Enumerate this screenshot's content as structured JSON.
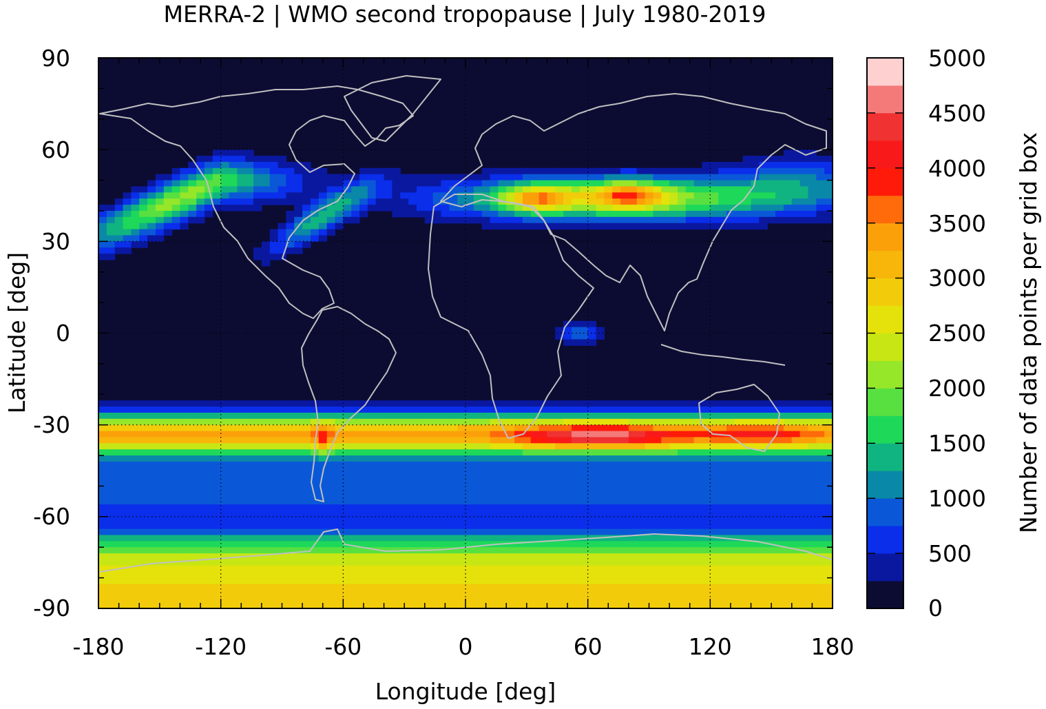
{
  "chart_data": {
    "type": "heatmap",
    "title": "MERRA-2 | WMO second tropopause | July 1980-2019",
    "xlabel": "Longitude [deg]",
    "ylabel": "Latitude [deg]",
    "colorbar_label": "Number of data points per grid box",
    "xlim": [
      -180,
      180
    ],
    "ylim": [
      -90,
      90
    ],
    "x_ticks": [
      "-180",
      "-120",
      "-60",
      "0",
      "60",
      "120",
      "180"
    ],
    "y_ticks": [
      "90",
      "60",
      "30",
      "0",
      "-30",
      "-60",
      "-90"
    ],
    "x_tick_values": [
      -180,
      -120,
      -60,
      0,
      60,
      120,
      180
    ],
    "y_tick_values": [
      90,
      60,
      30,
      0,
      -30,
      -60,
      -90
    ],
    "colorbar_ticks": [
      "5000",
      "4500",
      "4000",
      "3500",
      "3000",
      "2500",
      "2000",
      "1500",
      "1000",
      "500",
      "0"
    ],
    "colorbar_tick_values": [
      5000,
      4500,
      4000,
      3500,
      3000,
      2500,
      2000,
      1500,
      1000,
      500,
      0
    ],
    "color_levels": [
      {
        "from": 0,
        "to": 250,
        "color": "#0c0c33"
      },
      {
        "from": 250,
        "to": 500,
        "color": "#0a18a0"
      },
      {
        "from": 500,
        "to": 750,
        "color": "#0a2eea"
      },
      {
        "from": 750,
        "to": 1000,
        "color": "#0a58d8"
      },
      {
        "from": 1000,
        "to": 1250,
        "color": "#0a88a8"
      },
      {
        "from": 1250,
        "to": 1500,
        "color": "#10b480"
      },
      {
        "from": 1500,
        "to": 1750,
        "color": "#1ed85a"
      },
      {
        "from": 1750,
        "to": 2000,
        "color": "#58e040"
      },
      {
        "from": 2000,
        "to": 2250,
        "color": "#96e62a"
      },
      {
        "from": 2250,
        "to": 2500,
        "color": "#c8e614"
      },
      {
        "from": 2500,
        "to": 2750,
        "color": "#e4e20a"
      },
      {
        "from": 2750,
        "to": 3000,
        "color": "#f2cc0a"
      },
      {
        "from": 3000,
        "to": 3250,
        "color": "#f8b50a"
      },
      {
        "from": 3250,
        "to": 3500,
        "color": "#fca00a"
      },
      {
        "from": 3500,
        "to": 3750,
        "color": "#ff6a0a"
      },
      {
        "from": 3750,
        "to": 4000,
        "color": "#ff1a0a"
      },
      {
        "from": 4000,
        "to": 4250,
        "color": "#f81a1a"
      },
      {
        "from": 4250,
        "to": 4500,
        "color": "#f03232"
      },
      {
        "from": 4500,
        "to": 4750,
        "color": "#f47a7a"
      },
      {
        "from": 4750,
        "to": 5000,
        "color": "#ffd0d0"
      }
    ],
    "background_color": "#0c0c33",
    "coastline_color": "#c0c0c0",
    "grid": true,
    "colorbar_position": "right",
    "features": [
      {
        "name": "southern-subtropical-band",
        "lat_center": -33,
        "lat_halfwidth": 6,
        "peak": 3600
      },
      {
        "name": "southern-subtropical-max",
        "lon_center": 65,
        "lat_center": -34,
        "peak": 4700
      },
      {
        "name": "andes-max",
        "lon_center": -70,
        "lat_center": -35,
        "peak": 4000
      },
      {
        "name": "australia-max",
        "lon_center": 145,
        "lat_center": -33,
        "peak": 4100
      },
      {
        "name": "northern-eurasian-band",
        "lat_center": 44,
        "peak": 4200
      },
      {
        "name": "eurasia-max-1",
        "lon_center": 35,
        "lat_center": 44,
        "peak": 4100
      },
      {
        "name": "eurasia-max-2",
        "lon_center": 80,
        "lat_center": 45,
        "peak": 4000
      },
      {
        "name": "north-america-band",
        "lon_center": -120,
        "lat_center": 47,
        "peak": 2100
      },
      {
        "name": "antarctic-band",
        "lat_center": -80,
        "peak": 2800
      },
      {
        "name": "equatorial-indian-ocean",
        "lon_center": 55,
        "lat_center": 0,
        "peak": 900
      }
    ]
  }
}
